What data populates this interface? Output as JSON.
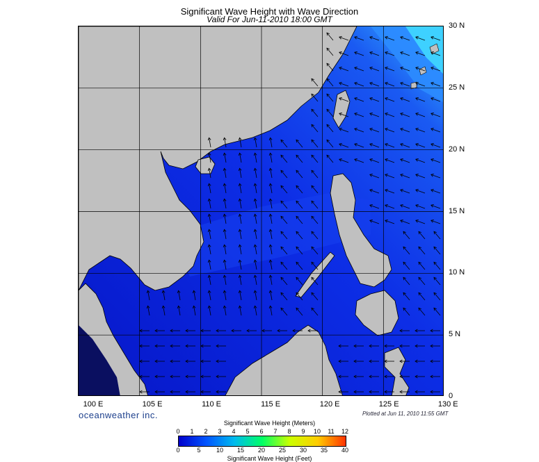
{
  "title": "Significant Wave Height with Wave Direction",
  "subtitle": "Valid For Jun-11-2010 18:00 GMT",
  "longitude_labels": [
    "100 E",
    "105 E",
    "110 E",
    "115 E",
    "120 E",
    "125 E",
    "130 E"
  ],
  "latitude_labels": [
    "30 N",
    "25 N",
    "20 N",
    "15 N",
    "10 N",
    "5 N",
    "0"
  ],
  "brand": "oceanweather inc.",
  "plotted": "Plotted at Jun 11, 2010 11:55 GMT",
  "legend": {
    "meters_title": "Significant Wave Height (Meters)",
    "feet_title": "Significant Wave Height (Feet)",
    "meters_ticks": [
      "0",
      "1",
      "2",
      "3",
      "4",
      "5",
      "6",
      "7",
      "8",
      "9",
      "10",
      "11",
      "12"
    ],
    "feet_ticks": [
      "0",
      "5",
      "10",
      "15",
      "20",
      "25",
      "30",
      "35",
      "40"
    ],
    "colors": [
      "#0000cc",
      "#0055ff",
      "#00bbee",
      "#00ff66",
      "#ccff00",
      "#ffcc00",
      "#ff3300"
    ]
  },
  "colors": {
    "land": "#c0c0c0",
    "sea_low": "#0a1fd8",
    "sea_mid": "#1a56f0",
    "sea_high": "#38c0ff",
    "grid": "#000000"
  }
}
